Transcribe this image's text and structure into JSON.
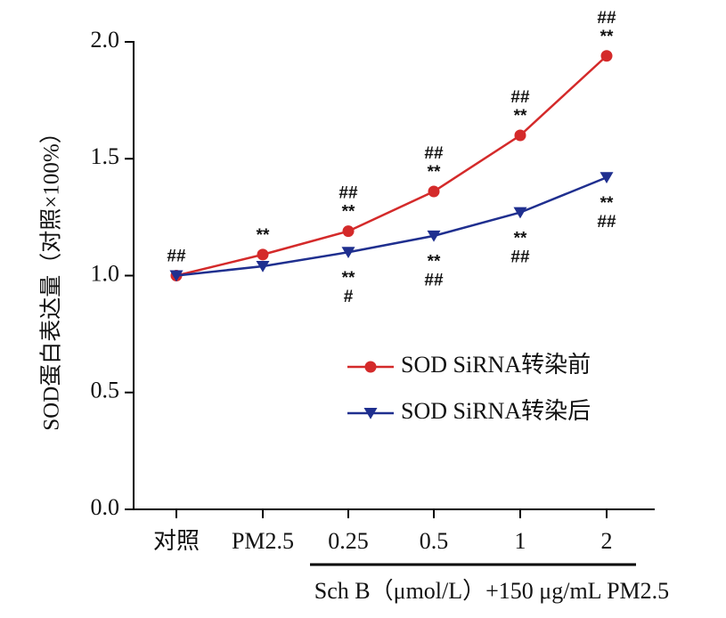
{
  "chart_data": {
    "type": "line",
    "categories": [
      "对照",
      "PM2.5",
      "0.25",
      "0.5",
      "1",
      "2"
    ],
    "ylabel": "SOD蛋白表达量（对照×100%）",
    "xsublabel": "Sch B（μmol/L）+150 μg/mL PM2.5",
    "ylim": [
      0,
      2.0
    ],
    "yticks": [
      "0.0",
      "0.5",
      "1.0",
      "1.5",
      "2.0"
    ],
    "legend": "right",
    "series": [
      {
        "name": "SOD SiRNA转染前",
        "color": "#d42a2a",
        "marker": "circle",
        "values": [
          1.0,
          1.09,
          1.19,
          1.36,
          1.6,
          1.94
        ],
        "annotations": [
          [
            "##"
          ],
          [
            "**"
          ],
          [
            "##",
            "**"
          ],
          [
            "##",
            "**"
          ],
          [
            "##",
            "**"
          ],
          [
            "##",
            "**"
          ]
        ]
      },
      {
        "name": "SOD SiRNA转染后",
        "color": "#1f2f8f",
        "marker": "triangle-down",
        "values": [
          1.0,
          1.04,
          1.1,
          1.17,
          1.27,
          1.42
        ],
        "annotations": [
          [],
          [],
          [
            "**",
            "#"
          ],
          [
            "**",
            "##"
          ],
          [
            "**",
            "##"
          ],
          [
            "**",
            "##"
          ]
        ]
      }
    ]
  }
}
